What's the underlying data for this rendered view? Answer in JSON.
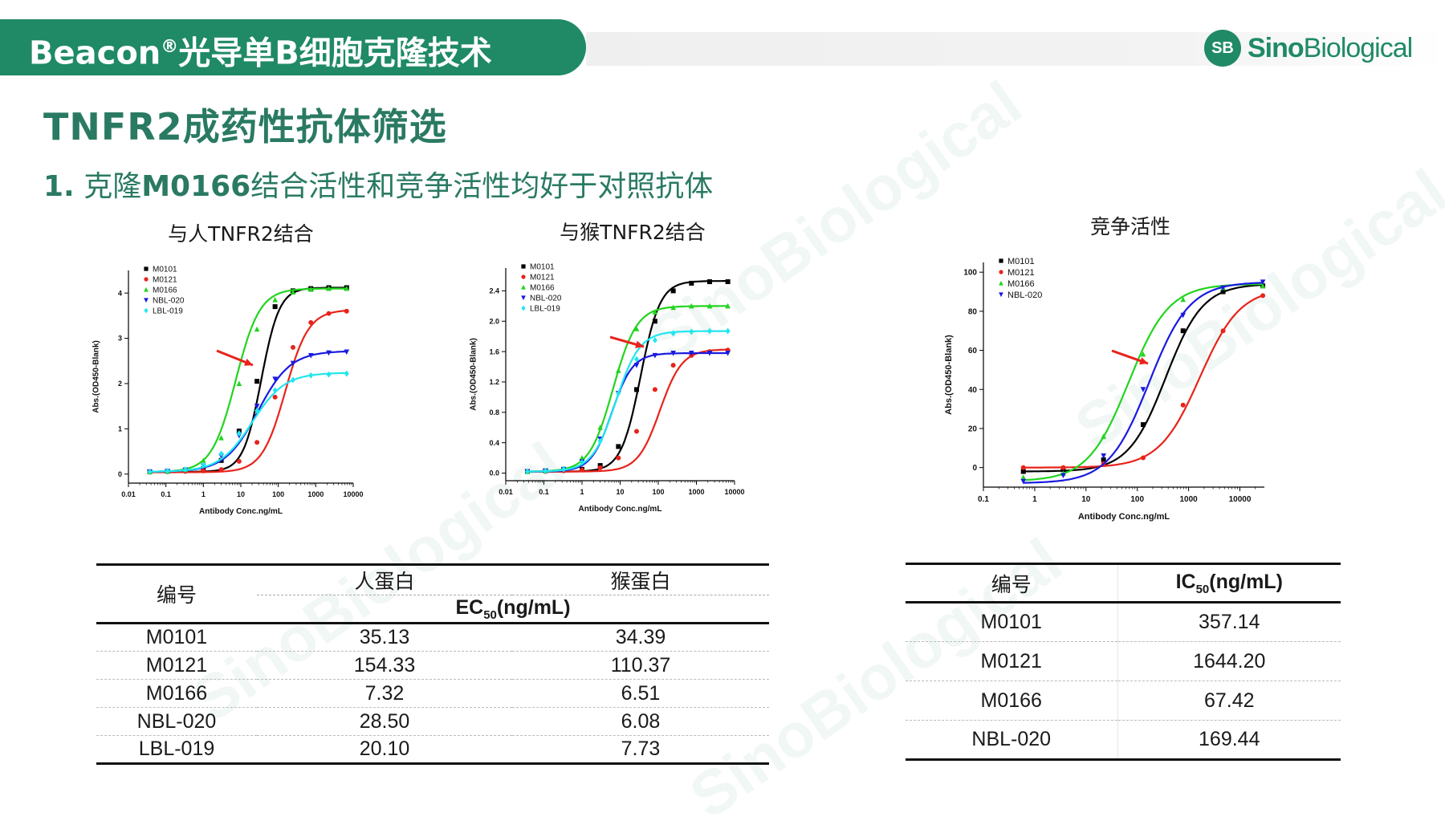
{
  "header": {
    "title": "Beacon",
    "title_sup": "®",
    "title_rest": "光导单B细胞克隆技术",
    "logo_mark": "SB",
    "logo_word_bold": "Sino",
    "logo_word_thin": "Biological"
  },
  "page_title": "TNFR2成药性抗体筛选",
  "subtitle": {
    "num": "1.",
    "before": "克隆",
    "bold": "M0166",
    "after": "结合活性和竞争活性均好于对照抗体"
  },
  "watermark_text": "SinoBiological",
  "colors": {
    "brand": "#1f8a65",
    "M0101": "#000000",
    "M0121": "#e8231b",
    "M0166": "#22d41e",
    "NBL-020": "#1a1ae0",
    "LBL-019": "#20e6ee",
    "arrow": "#e8231b"
  },
  "chart_data": [
    {
      "type": "line",
      "title": "与人TNFR2结合",
      "xlabel": "Antibody Conc.ng/mL",
      "ylabel": "Abs.(OD450-Blank)",
      "xscale": "log",
      "xlim": [
        0.01,
        10000
      ],
      "ylim": [
        -0.2,
        4.5
      ],
      "xticks": [
        "0.01",
        "0.1",
        "1",
        "10",
        "100",
        "1000",
        "10000"
      ],
      "yticks": [
        "0",
        "1",
        "2",
        "3",
        "4"
      ],
      "legend": "top-left",
      "x": [
        0.037,
        0.11,
        0.33,
        1,
        3,
        9,
        27,
        82,
        247,
        741,
        2222,
        6667
      ],
      "series": [
        {
          "name": "M0101",
          "marker": "square",
          "values": [
            0.05,
            0.06,
            0.08,
            0.12,
            0.3,
            0.95,
            2.05,
            3.7,
            4.05,
            4.1,
            4.12,
            4.12
          ],
          "fit": [
            0.05,
            4.12,
            35.13,
            1.8
          ]
        },
        {
          "name": "M0121",
          "marker": "circle",
          "values": [
            0.04,
            0.05,
            0.06,
            0.07,
            0.1,
            0.28,
            0.7,
            1.7,
            2.8,
            3.35,
            3.55,
            3.6
          ],
          "fit": [
            0.04,
            3.63,
            154.33,
            1.4
          ]
        },
        {
          "name": "M0166",
          "marker": "triangle-up",
          "values": [
            0.05,
            0.06,
            0.1,
            0.3,
            0.8,
            2.0,
            3.2,
            3.85,
            4.02,
            4.08,
            4.1,
            4.1
          ],
          "fit": [
            0.05,
            4.1,
            7.32,
            1.35
          ]
        },
        {
          "name": "NBL-020",
          "marker": "triangle-down",
          "values": [
            0.05,
            0.06,
            0.09,
            0.18,
            0.4,
            0.85,
            1.5,
            2.1,
            2.45,
            2.62,
            2.68,
            2.7
          ],
          "fit": [
            0.05,
            2.72,
            28.5,
            1.0
          ]
        },
        {
          "name": "LBL-019",
          "marker": "diamond",
          "values": [
            0.05,
            0.07,
            0.1,
            0.2,
            0.45,
            0.9,
            1.4,
            1.85,
            2.08,
            2.18,
            2.2,
            2.22
          ],
          "fit": [
            0.05,
            2.24,
            20.1,
            1.0
          ]
        }
      ],
      "annotation": "red arrow pointing at M0166 curve"
    },
    {
      "type": "line",
      "title": "与猴TNFR2结合",
      "xlabel": "Antibody Conc.ng/mL",
      "ylabel": "Abs.(OD450-Blank)",
      "xscale": "log",
      "xlim": [
        0.01,
        10000
      ],
      "ylim": [
        -0.1,
        2.7
      ],
      "xticks": [
        "0.01",
        "0.1",
        "1",
        "10",
        "100",
        "1000",
        "10000"
      ],
      "yticks": [
        "0.0",
        "0.4",
        "0.8",
        "1.2",
        "1.6",
        "2.0",
        "2.4"
      ],
      "legend": "top-left",
      "x": [
        0.037,
        0.11,
        0.33,
        1,
        3,
        9,
        27,
        82,
        247,
        741,
        2222,
        6667
      ],
      "series": [
        {
          "name": "M0101",
          "marker": "square",
          "values": [
            0.02,
            0.03,
            0.04,
            0.05,
            0.1,
            0.35,
            1.1,
            2.0,
            2.4,
            2.5,
            2.52,
            2.52
          ],
          "fit": [
            0.02,
            2.53,
            34.39,
            1.7
          ]
        },
        {
          "name": "M0121",
          "marker": "circle",
          "values": [
            0.02,
            0.02,
            0.03,
            0.04,
            0.07,
            0.2,
            0.55,
            1.1,
            1.42,
            1.55,
            1.6,
            1.62
          ],
          "fit": [
            0.02,
            1.63,
            110.37,
            1.5
          ]
        },
        {
          "name": "M0166",
          "marker": "triangle-up",
          "values": [
            0.02,
            0.03,
            0.06,
            0.2,
            0.6,
            1.35,
            1.9,
            2.12,
            2.18,
            2.2,
            2.2,
            2.2
          ],
          "fit": [
            0.02,
            2.2,
            6.51,
            1.4
          ]
        },
        {
          "name": "NBL-020",
          "marker": "triangle-down",
          "values": [
            0.02,
            0.03,
            0.05,
            0.15,
            0.45,
            1.05,
            1.42,
            1.55,
            1.58,
            1.58,
            1.58,
            1.58
          ],
          "fit": [
            0.02,
            1.58,
            6.08,
            1.6
          ]
        },
        {
          "name": "LBL-019",
          "marker": "diamond",
          "values": [
            0.02,
            0.03,
            0.05,
            0.14,
            0.42,
            1.05,
            1.5,
            1.75,
            1.84,
            1.86,
            1.87,
            1.87
          ],
          "fit": [
            0.02,
            1.87,
            7.73,
            1.4
          ]
        }
      ],
      "annotation": "red arrow pointing at M0166 curve"
    },
    {
      "type": "line",
      "title": "竞争活性",
      "xlabel": "Antibody Conc.ng/mL",
      "ylabel": "Abs.(OD450-Blank)",
      "xscale": "log",
      "xlim": [
        0.1,
        30000
      ],
      "ylim": [
        -10,
        105
      ],
      "xticks": [
        "0.1",
        "1",
        "10",
        "100",
        "1000",
        "10000"
      ],
      "yticks": [
        "0",
        "20",
        "40",
        "60",
        "80",
        "100"
      ],
      "legend": "top-left",
      "x": [
        0.6,
        3.6,
        22,
        130,
        780,
        4700,
        28000
      ],
      "series": [
        {
          "name": "M0101",
          "marker": "square",
          "values": [
            -2,
            -1,
            4,
            22,
            70,
            90,
            93
          ],
          "fit": [
            -2,
            94,
            357.14,
            1.2
          ]
        },
        {
          "name": "M0121",
          "marker": "circle",
          "values": [
            0,
            0,
            2,
            5,
            32,
            70,
            88
          ],
          "fit": [
            0,
            92,
            1644.2,
            1.1
          ]
        },
        {
          "name": "M0166",
          "marker": "triangle-up",
          "values": [
            -5,
            -3,
            16,
            58,
            86,
            92,
            93
          ],
          "fit": [
            -7,
            94,
            67.42,
            1.1
          ]
        },
        {
          "name": "NBL-020",
          "marker": "triangle-down",
          "values": [
            -7,
            -4,
            6,
            40,
            78,
            92,
            95
          ],
          "fit": [
            -8,
            95,
            169.44,
            1.1
          ]
        }
      ],
      "annotation": "red arrow pointing at M0166 curve"
    }
  ],
  "table_binding": {
    "col_id": "编号",
    "col_human": "人蛋白",
    "col_monkey": "猴蛋白",
    "metric": "EC",
    "metric_sub": "50",
    "metric_unit": "(ng/mL)",
    "rows": [
      {
        "id": "M0101",
        "human": "35.13",
        "monkey": "34.39"
      },
      {
        "id": "M0121",
        "human": "154.33",
        "monkey": "110.37"
      },
      {
        "id": "M0166",
        "human": "7.32",
        "monkey": "6.51"
      },
      {
        "id": "NBL-020",
        "human": "28.50",
        "monkey": "6.08"
      },
      {
        "id": "LBL-019",
        "human": "20.10",
        "monkey": "7.73"
      }
    ]
  },
  "table_competition": {
    "col_id": "编号",
    "metric": "IC",
    "metric_sub": "50",
    "metric_unit": "(ng/mL)",
    "rows": [
      {
        "id": "M0101",
        "value": "357.14"
      },
      {
        "id": "M0121",
        "value": "1644.20"
      },
      {
        "id": "M0166",
        "value": "67.42"
      },
      {
        "id": "NBL-020",
        "value": "169.44"
      }
    ]
  }
}
